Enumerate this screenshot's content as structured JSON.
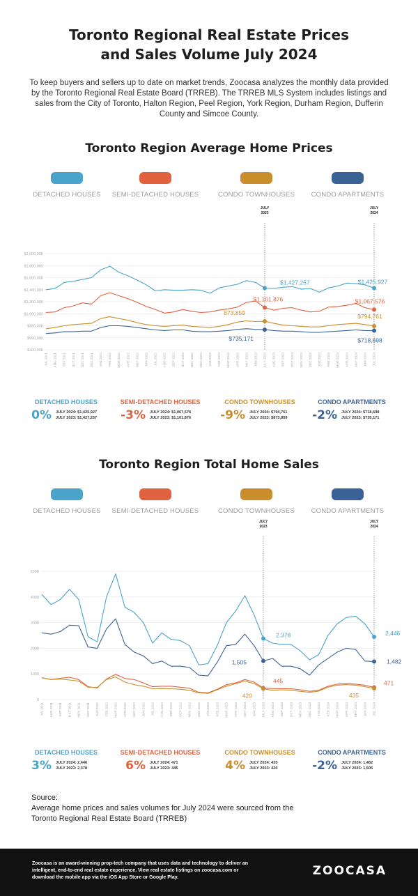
{
  "title_line1": "Toronto Regional Real Estate Prices",
  "title_line2": "and Sales Volume July 2024",
  "intro": "To keep buyers and sellers up to date on market trends, Zoocasa analyzes the monthly data provided by the Toronto Regional Real Estate Board (TRREB). The TRREB MLS System includes listings and sales from the City of Toronto, Halton Region, Peel Region, York Region, Durham Region, Dufferin County and Simcoe County.",
  "colors": {
    "detached": "#4aa3c8",
    "semi": "#e0623f",
    "condo_th": "#c98e2b",
    "condo_apt": "#3a6296"
  },
  "legend": [
    {
      "label": "DETACHED HOUSES",
      "color": "#4aa3c8"
    },
    {
      "label": "SEMI-DETACHED HOUSES",
      "color": "#e0623f"
    },
    {
      "label": "CONDO TOWNHOUSES",
      "color": "#c98e2b"
    },
    {
      "label": "CONDO APARTMENTS",
      "color": "#3a6296"
    }
  ],
  "chart_data": [
    {
      "type": "line",
      "title": "Toronto Region Average Home Prices",
      "x": [
        "JUL 2021",
        "AUG 2021",
        "SEP 2021",
        "OCT 2021",
        "NOV 2021",
        "DEC 2021",
        "JAN 2022",
        "FEB 2022",
        "MAR 2022",
        "APR 2022",
        "MAY 2022",
        "JUN 2022",
        "JUL 2022",
        "AUG 2022",
        "SEP 2022",
        "OCT 2022",
        "NOV 2022",
        "DEC 2022",
        "JAN 2023",
        "FEB 2023",
        "MAR 2023",
        "APR 2023",
        "MAY 2023",
        "JUN 2023",
        "JULY 2023",
        "AUG 2023",
        "SEP 2023",
        "OCT 2023",
        "NOV 2023",
        "DEC 2023",
        "JAN 2024",
        "FEB 2024",
        "MAR 2024",
        "APR 2024",
        "MAY 2024",
        "JUN 2024",
        "JUL 2024"
      ],
      "xlabel": "",
      "ylabel": "",
      "ylim": [
        400000,
        2000000
      ],
      "yticks": [
        "$2,000,000",
        "$1,800,000",
        "$1,600,000",
        "$1,400,000",
        "$1,200,000",
        "$1,000,000",
        "$800,000",
        "$600,000",
        "$400,000"
      ],
      "ytick_values": [
        2000000,
        1800000,
        1600000,
        1400000,
        1200000,
        1000000,
        800000,
        600000,
        400000
      ],
      "markers": [
        "JULY 2023",
        "JULY 2024"
      ],
      "series": [
        {
          "key": "detached",
          "values": [
            1400000,
            1420000,
            1520000,
            1540000,
            1570000,
            1600000,
            1730000,
            1790000,
            1690000,
            1630000,
            1560000,
            1480000,
            1380000,
            1400000,
            1390000,
            1390000,
            1400000,
            1390000,
            1340000,
            1430000,
            1460000,
            1490000,
            1550000,
            1520000,
            1427257,
            1420000,
            1440000,
            1450000,
            1410000,
            1420000,
            1360000,
            1430000,
            1460000,
            1510000,
            1500000,
            1480000,
            1425927
          ],
          "labels": [
            {
              "i": 24,
              "text": "$1,427,257"
            },
            {
              "i": 36,
              "text": "$1,425,927"
            }
          ]
        },
        {
          "key": "semi",
          "values": [
            1020000,
            1030000,
            1100000,
            1130000,
            1180000,
            1160000,
            1300000,
            1350000,
            1300000,
            1250000,
            1190000,
            1120000,
            1070000,
            1010000,
            1030000,
            1070000,
            1040000,
            1020000,
            1030000,
            1060000,
            1080000,
            1110000,
            1190000,
            1210000,
            1101876,
            1060000,
            1090000,
            1100000,
            1060000,
            1030000,
            1040000,
            1110000,
            1120000,
            1140000,
            1170000,
            1100000,
            1067576
          ],
          "labels": [
            {
              "i": 24,
              "text": "$1,101,876"
            },
            {
              "i": 36,
              "text": "$1,067,576"
            }
          ]
        },
        {
          "key": "condo_th",
          "values": [
            750000,
            770000,
            800000,
            820000,
            830000,
            840000,
            920000,
            950000,
            920000,
            890000,
            850000,
            820000,
            800000,
            790000,
            800000,
            810000,
            790000,
            780000,
            770000,
            790000,
            820000,
            860000,
            880000,
            870000,
            873859,
            840000,
            810000,
            800000,
            790000,
            780000,
            780000,
            800000,
            820000,
            830000,
            840000,
            820000,
            794761
          ],
          "labels": [
            {
              "i": 24,
              "text": "873,859"
            },
            {
              "i": 36,
              "text": "$794,761"
            }
          ]
        },
        {
          "key": "condo_apt",
          "values": [
            670000,
            680000,
            700000,
            700000,
            710000,
            710000,
            770000,
            800000,
            800000,
            790000,
            770000,
            750000,
            730000,
            720000,
            730000,
            730000,
            710000,
            700000,
            700000,
            710000,
            720000,
            740000,
            750000,
            740000,
            735171,
            720000,
            710000,
            710000,
            700000,
            690000,
            690000,
            700000,
            710000,
            720000,
            730000,
            720000,
            718698
          ],
          "labels": [
            {
              "i": 24,
              "text": "$735,171"
            },
            {
              "i": 36,
              "text": "$718,698"
            }
          ]
        }
      ]
    },
    {
      "type": "line",
      "title": "Toronto Region Total Home Sales",
      "x": [
        "JUL 2021",
        "AUG 2021",
        "SEP 2021",
        "OCT 2021",
        "NOV 2021",
        "DEC 2021",
        "JAN 2022",
        "FEB 2022",
        "MAR 2022",
        "APR 2022",
        "MAY 2022",
        "JUN 2022",
        "JUL 2022",
        "AUG 2022",
        "SEP 2022",
        "OCT 2022",
        "NOV 2022",
        "DEC 2022",
        "JAN 2023",
        "FEB 2023",
        "MAR 2023",
        "APR 2023",
        "MAY 2023",
        "JUN 2023",
        "JULY 2023",
        "AUG 2023",
        "SEP 2023",
        "OCT 2023",
        "NOV 2023",
        "DEC 2023",
        "JAN 2024",
        "FEB 2024",
        "MAR 2024",
        "APR 2024",
        "MAY 2024",
        "JUN 2024",
        "JUL 2024"
      ],
      "xlabel": "",
      "ylabel": "",
      "ylim": [
        0,
        5000
      ],
      "yticks": [
        "5000",
        "4000",
        "3000",
        "2000",
        "1000",
        "0"
      ],
      "ytick_values": [
        5000,
        4000,
        3000,
        2000,
        1000,
        0
      ],
      "markers": [
        "JULY 2023",
        "JULY 2024"
      ],
      "series": [
        {
          "key": "detached",
          "values": [
            4100,
            3700,
            3900,
            4300,
            3900,
            2450,
            2250,
            4000,
            4900,
            3600,
            3400,
            3000,
            2200,
            2600,
            2350,
            2300,
            2100,
            1350,
            1400,
            2100,
            3000,
            3450,
            4050,
            3300,
            2378,
            2200,
            2150,
            2150,
            1900,
            1550,
            1750,
            2500,
            2950,
            3200,
            3250,
            2950,
            2446
          ],
          "labels": [
            {
              "i": 24,
              "text": "2,378"
            },
            {
              "i": 36,
              "text": "2,446"
            }
          ]
        },
        {
          "key": "semi",
          "values": [
            850,
            780,
            830,
            870,
            780,
            500,
            450,
            800,
            980,
            820,
            780,
            650,
            500,
            520,
            520,
            480,
            440,
            280,
            260,
            400,
            580,
            650,
            780,
            680,
            445,
            430,
            420,
            420,
            380,
            320,
            360,
            520,
            600,
            620,
            600,
            560,
            471
          ],
          "labels": [
            {
              "i": 24,
              "text": "445"
            },
            {
              "i": 36,
              "text": "471"
            }
          ]
        },
        {
          "key": "condo_th",
          "values": [
            850,
            780,
            800,
            760,
            720,
            480,
            470,
            780,
            880,
            680,
            580,
            520,
            420,
            430,
            420,
            400,
            360,
            260,
            240,
            380,
            520,
            620,
            720,
            620,
            420,
            360,
            380,
            360,
            320,
            280,
            330,
            480,
            560,
            580,
            560,
            500,
            435
          ],
          "labels": [
            {
              "i": 24,
              "text": "420"
            },
            {
              "i": 36,
              "text": "435"
            }
          ]
        },
        {
          "key": "condo_apt",
          "values": [
            2600,
            2550,
            2650,
            2900,
            2880,
            2050,
            2000,
            2750,
            3150,
            2150,
            1850,
            1700,
            1400,
            1500,
            1300,
            1300,
            1250,
            950,
            920,
            1450,
            2100,
            2150,
            2550,
            2100,
            1505,
            1600,
            1300,
            1300,
            1200,
            950,
            1350,
            1600,
            1850,
            2000,
            1950,
            1500,
            1482
          ],
          "labels": [
            {
              "i": 24,
              "text": "1,505"
            },
            {
              "i": 36,
              "text": "1,482"
            }
          ]
        }
      ]
    }
  ],
  "price_stats": [
    {
      "title": "DETACHED HOUSES",
      "pct": "0%",
      "line1": "JULY 2024: $1,425,927",
      "line2": "JULY 2023: $1,427,257",
      "color": "#4aa3c8"
    },
    {
      "title": "SEMI-DETACHED HOUSES",
      "pct": "-3%",
      "line1": "JULY 2024: $1,067,576",
      "line2": "JULY 2023: $1,101,876",
      "color": "#e0623f"
    },
    {
      "title": "CONDO TOWNHOUSES",
      "pct": "-9%",
      "line1": "JULY 2024: $794,761",
      "line2": "JULY 2023: $873,859",
      "color": "#c98e2b"
    },
    {
      "title": "CONDO APARTMENTS",
      "pct": "-2%",
      "line1": "JULY 2024: $718,698",
      "line2": "JULY 2023: $735,171",
      "color": "#3a6296"
    }
  ],
  "sales_stats": [
    {
      "title": "DETACHED HOUSES",
      "pct": "3%",
      "line1": "JULY 2024: 2,446",
      "line2": "JULY 2023: 2,378",
      "color": "#4aa3c8"
    },
    {
      "title": "SEMI-DETACHED HOUSES",
      "pct": "6%",
      "line1": "JULY 2024: 471",
      "line2": "JULY 2023: 445",
      "color": "#e0623f"
    },
    {
      "title": "CONDO TOWNHOUSES",
      "pct": "4%",
      "line1": "JULY 2024: 435",
      "line2": "JULY 2023: 420",
      "color": "#c98e2b"
    },
    {
      "title": "CONDO APARTMENTS",
      "pct": "-2%",
      "line1": "JULY 2024: 1,482",
      "line2": "JULY 2023: 1,505",
      "color": "#3a6296"
    }
  ],
  "source": {
    "heading": "Source:",
    "line1": "Average home prices and sales volumes for July 2024 were sourced from the",
    "line2": "Toronto Regional Real Estate Board (TRREB)"
  },
  "footer": {
    "text": "Zoocasa is an award-winning prop-tech company that uses data and technology to deliver an intelligent, end-to-end real estate experience. View real estate listings on zoocasa.com or download the mobile app via the iOS App Store or Google Play.",
    "logo": "ZOOCASA"
  }
}
